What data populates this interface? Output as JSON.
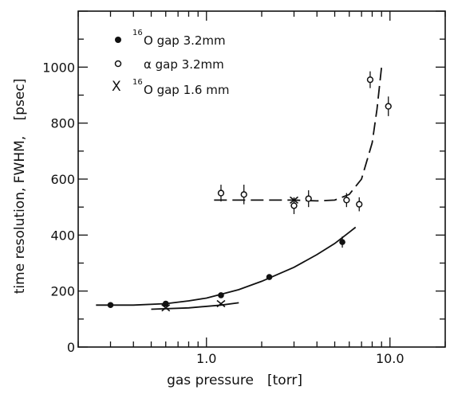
{
  "chart_data": {
    "type": "scatter",
    "xscale": "log",
    "xlim": [
      0.2,
      20
    ],
    "ylim": [
      0,
      1200
    ],
    "xlabel": "gas pressure",
    "xunit": "[torr]",
    "ylabel": "time resolution, FWHM,",
    "yunit": "[psec]",
    "grid": false,
    "legend_position": "top-left",
    "xticklabels": [
      {
        "value": 1.0,
        "label": "1.0"
      },
      {
        "value": 10.0,
        "label": "10.0"
      }
    ],
    "yticklabels": [
      {
        "value": 0,
        "label": "0"
      },
      {
        "value": 200,
        "label": "200"
      },
      {
        "value": 400,
        "label": "400"
      },
      {
        "value": 600,
        "label": "600"
      },
      {
        "value": 800,
        "label": "800"
      },
      {
        "value": 1000,
        "label": "1000"
      }
    ],
    "series": [
      {
        "name": "16O gap 3.2mm",
        "legend_sup": "16",
        "legend_text": "O gap 3.2mm",
        "marker": "filled-circle",
        "points": [
          {
            "x": 0.3,
            "y": 150
          },
          {
            "x": 0.6,
            "y": 155
          },
          {
            "x": 1.2,
            "y": 185
          },
          {
            "x": 2.2,
            "y": 250
          },
          {
            "x": 5.5,
            "y": 375,
            "yerr": 20
          }
        ],
        "fit": [
          {
            "x": 0.25,
            "y": 150
          },
          {
            "x": 0.4,
            "y": 150
          },
          {
            "x": 0.6,
            "y": 155
          },
          {
            "x": 0.8,
            "y": 165
          },
          {
            "x": 1.0,
            "y": 175
          },
          {
            "x": 1.5,
            "y": 205
          },
          {
            "x": 2.0,
            "y": 235
          },
          {
            "x": 3.0,
            "y": 285
          },
          {
            "x": 4.0,
            "y": 330
          },
          {
            "x": 5.0,
            "y": 370
          },
          {
            "x": 6.0,
            "y": 410
          },
          {
            "x": 6.5,
            "y": 428
          }
        ]
      },
      {
        "name": "α gap 3.2mm",
        "legend_sup": "",
        "legend_text": "α gap 3.2mm",
        "marker": "open-circle",
        "points": [
          {
            "x": 1.2,
            "y": 550,
            "yerr": 30
          },
          {
            "x": 1.6,
            "y": 545,
            "yerr": 35
          },
          {
            "x": 3.0,
            "y": 505,
            "yerr": 30
          },
          {
            "x": 3.6,
            "y": 530,
            "yerr": 30
          },
          {
            "x": 5.8,
            "y": 525,
            "yerr": 25
          },
          {
            "x": 6.8,
            "y": 510,
            "yerr": 25
          },
          {
            "x": 7.8,
            "y": 955,
            "yerr": 30
          },
          {
            "x": 9.8,
            "y": 860,
            "yerr": 35
          }
        ],
        "fit": [
          {
            "x": 1.1,
            "y": 525
          },
          {
            "x": 2.0,
            "y": 525
          },
          {
            "x": 3.0,
            "y": 525
          },
          {
            "x": 4.0,
            "y": 522
          },
          {
            "x": 5.0,
            "y": 525
          },
          {
            "x": 6.0,
            "y": 545
          },
          {
            "x": 7.0,
            "y": 600
          },
          {
            "x": 8.0,
            "y": 730
          },
          {
            "x": 8.5,
            "y": 850
          },
          {
            "x": 9.0,
            "y": 1000
          }
        ]
      },
      {
        "name": "16O gap 1.6 mm",
        "legend_sup": "16",
        "legend_text": "O gap 1.6 mm",
        "marker": "x",
        "points": [
          {
            "x": 0.6,
            "y": 140
          },
          {
            "x": 1.2,
            "y": 155
          },
          {
            "x": 3.0,
            "y": 525
          }
        ],
        "fit": [
          {
            "x": 0.5,
            "y": 135
          },
          {
            "x": 0.8,
            "y": 140
          },
          {
            "x": 1.2,
            "y": 150
          },
          {
            "x": 1.5,
            "y": 158
          }
        ]
      }
    ]
  }
}
